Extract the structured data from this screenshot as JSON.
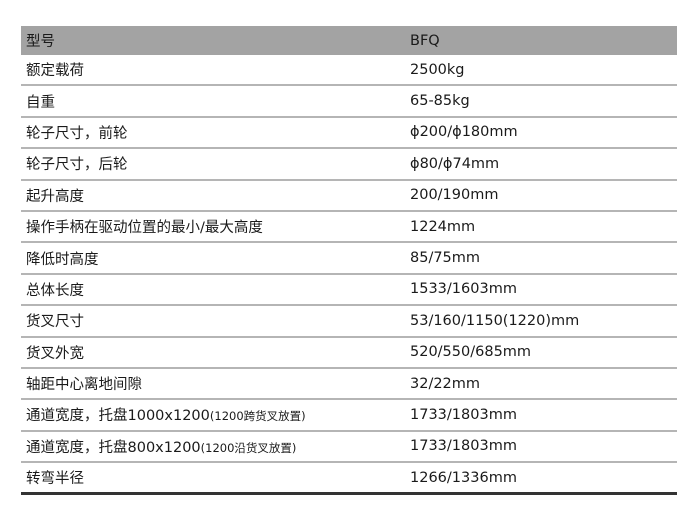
{
  "header": {
    "label": "型号",
    "value": "BFQ",
    "bg_color": "#a3a3a3"
  },
  "rows": [
    {
      "label": "额定载荷",
      "value": "2500kg"
    },
    {
      "label": "自重",
      "value": "65-85kg"
    },
    {
      "label": "轮子尺寸，前轮",
      "value": "ϕ200/ϕ180mm"
    },
    {
      "label": "轮子尺寸，后轮",
      "value": "ϕ80/ϕ74mm"
    },
    {
      "label": "起升高度",
      "value": "200/190mm"
    },
    {
      "label": "操作手柄在驱动位置的最小/最大高度",
      "value": "1224mm"
    },
    {
      "label": "降低时高度",
      "value": "85/75mm"
    },
    {
      "label": "总体长度",
      "value": "1533/1603mm"
    },
    {
      "label": "货叉尺寸",
      "value": "53/160/1150(1220)mm"
    },
    {
      "label": "货叉外宽",
      "value": "520/550/685mm"
    },
    {
      "label": "轴距中心离地间隙",
      "value": "32/22mm"
    },
    {
      "label": "通道宽度，托盘1000x1200",
      "label_note": "(1200跨货叉放置)",
      "value": "1733/1803mm"
    },
    {
      "label": "通道宽度，托盘800x1200",
      "label_note": "(1200沿货叉放置)",
      "value": "1733/1803mm"
    },
    {
      "label": "转弯半径",
      "value": "1266/1336mm"
    }
  ]
}
